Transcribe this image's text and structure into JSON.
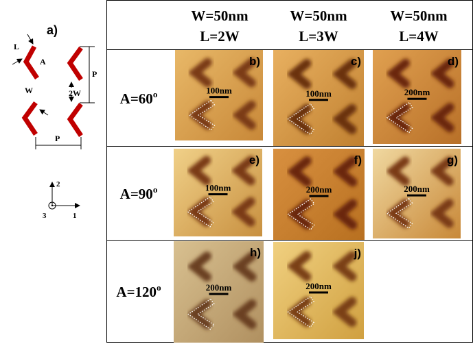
{
  "schematic": {
    "label": "a)",
    "dims": [
      "L",
      "A",
      "W",
      "2W",
      "P",
      "P"
    ],
    "axes": [
      "2",
      "3",
      "1"
    ]
  },
  "table": {
    "headers": [
      [
        "W=50nm",
        "L=2W"
      ],
      [
        "W=50nm",
        "L=3W"
      ],
      [
        "W=50nm",
        "L=4W"
      ]
    ],
    "rows": [
      {
        "label": "A=60",
        "sup": "o",
        "cells": [
          {
            "tag": "b)",
            "scale": "100nm"
          },
          {
            "tag": "c)",
            "scale": "100nm"
          },
          {
            "tag": "d)",
            "scale": "200nm"
          }
        ]
      },
      {
        "label": "A=90",
        "sup": "o",
        "cells": [
          {
            "tag": "e)",
            "scale": "100nm"
          },
          {
            "tag": "f)",
            "scale": "200nm"
          },
          {
            "tag": "g)",
            "scale": "200nm"
          }
        ]
      },
      {
        "label": "A=120",
        "sup": "o",
        "cells": [
          {
            "tag": "h)",
            "scale": "200nm"
          },
          {
            "tag": "j)",
            "scale": "200nm"
          }
        ]
      }
    ]
  }
}
